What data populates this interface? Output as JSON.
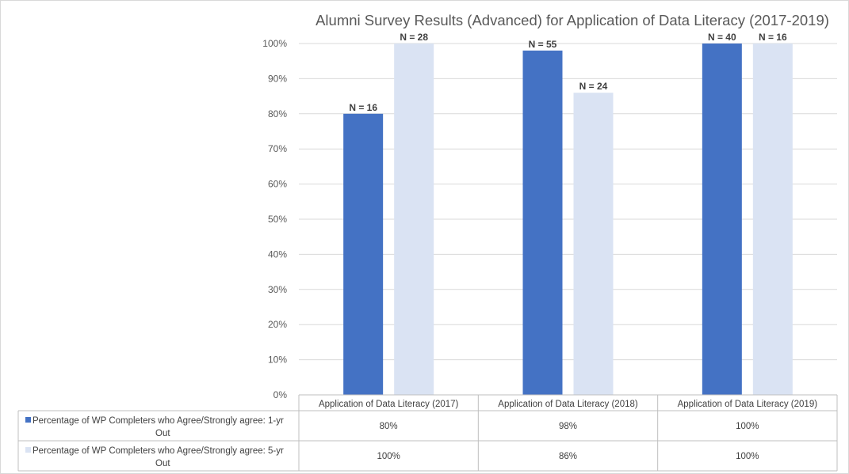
{
  "chart_data": {
    "type": "bar",
    "title": "Alumni Survey Results (Advanced) for Application of Data Literacy (2017-2019)",
    "categories": [
      "Application of Data Literacy (2017)",
      "Application of Data Literacy (2018)",
      "Application of Data Literacy (2019)"
    ],
    "series": [
      {
        "name": "Percentage of WP Completers who Agree/Strongly agree: 1-yr Out",
        "color": "#4472c4",
        "values": [
          80,
          98,
          100
        ],
        "table_values": [
          "80%",
          "98%",
          "100%"
        ],
        "bar_labels": [
          "N = 16",
          "N = 55",
          "N = 40"
        ]
      },
      {
        "name": "Percentage of WP Completers who Agree/Strongly agree: 5-yr Out",
        "color": "#dae3f3",
        "values": [
          100,
          86,
          100
        ],
        "table_values": [
          "100%",
          "86%",
          "100%"
        ],
        "bar_labels": [
          "N = 28",
          "N = 24",
          "N = 16"
        ]
      }
    ],
    "ylim": [
      0,
      100
    ],
    "y_ticks": [
      "0%",
      "10%",
      "20%",
      "30%",
      "40%",
      "50%",
      "60%",
      "70%",
      "80%",
      "90%",
      "100%"
    ],
    "grid": true,
    "legend": "data-table"
  }
}
